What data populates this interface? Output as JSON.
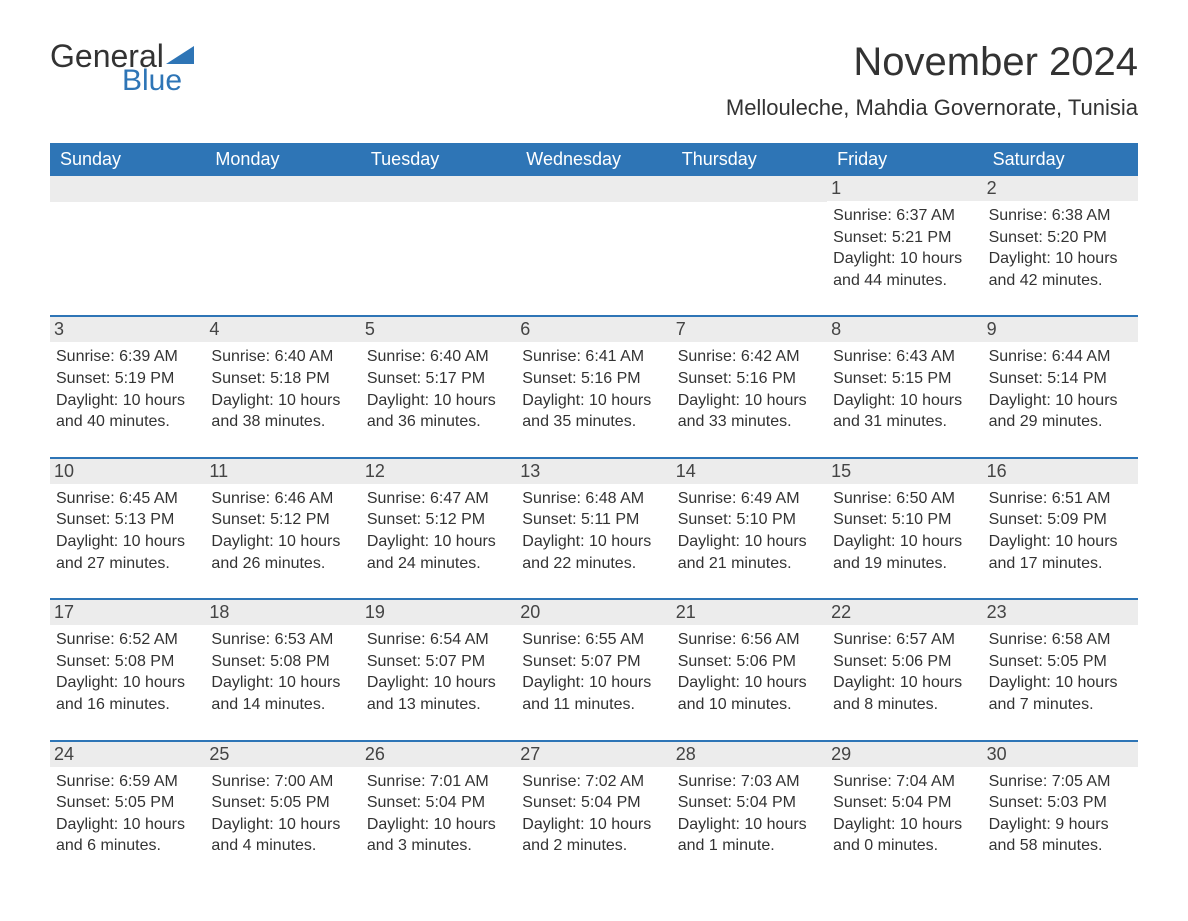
{
  "logo": {
    "general": "General",
    "blue": "Blue"
  },
  "title": "November 2024",
  "location": "Mellouleche, Mahdia Governorate, Tunisia",
  "colors": {
    "header_bg": "#2e75b6",
    "header_text": "#ffffff",
    "daynum_bg": "#ececec",
    "border": "#2e75b6",
    "text": "#333333",
    "background": "#ffffff"
  },
  "weekdays": [
    "Sunday",
    "Monday",
    "Tuesday",
    "Wednesday",
    "Thursday",
    "Friday",
    "Saturday"
  ],
  "weeks": [
    [
      null,
      null,
      null,
      null,
      null,
      {
        "n": "1",
        "sunrise": "Sunrise: 6:37 AM",
        "sunset": "Sunset: 5:21 PM",
        "daylight": "Daylight: 10 hours and 44 minutes."
      },
      {
        "n": "2",
        "sunrise": "Sunrise: 6:38 AM",
        "sunset": "Sunset: 5:20 PM",
        "daylight": "Daylight: 10 hours and 42 minutes."
      }
    ],
    [
      {
        "n": "3",
        "sunrise": "Sunrise: 6:39 AM",
        "sunset": "Sunset: 5:19 PM",
        "daylight": "Daylight: 10 hours and 40 minutes."
      },
      {
        "n": "4",
        "sunrise": "Sunrise: 6:40 AM",
        "sunset": "Sunset: 5:18 PM",
        "daylight": "Daylight: 10 hours and 38 minutes."
      },
      {
        "n": "5",
        "sunrise": "Sunrise: 6:40 AM",
        "sunset": "Sunset: 5:17 PM",
        "daylight": "Daylight: 10 hours and 36 minutes."
      },
      {
        "n": "6",
        "sunrise": "Sunrise: 6:41 AM",
        "sunset": "Sunset: 5:16 PM",
        "daylight": "Daylight: 10 hours and 35 minutes."
      },
      {
        "n": "7",
        "sunrise": "Sunrise: 6:42 AM",
        "sunset": "Sunset: 5:16 PM",
        "daylight": "Daylight: 10 hours and 33 minutes."
      },
      {
        "n": "8",
        "sunrise": "Sunrise: 6:43 AM",
        "sunset": "Sunset: 5:15 PM",
        "daylight": "Daylight: 10 hours and 31 minutes."
      },
      {
        "n": "9",
        "sunrise": "Sunrise: 6:44 AM",
        "sunset": "Sunset: 5:14 PM",
        "daylight": "Daylight: 10 hours and 29 minutes."
      }
    ],
    [
      {
        "n": "10",
        "sunrise": "Sunrise: 6:45 AM",
        "sunset": "Sunset: 5:13 PM",
        "daylight": "Daylight: 10 hours and 27 minutes."
      },
      {
        "n": "11",
        "sunrise": "Sunrise: 6:46 AM",
        "sunset": "Sunset: 5:12 PM",
        "daylight": "Daylight: 10 hours and 26 minutes."
      },
      {
        "n": "12",
        "sunrise": "Sunrise: 6:47 AM",
        "sunset": "Sunset: 5:12 PM",
        "daylight": "Daylight: 10 hours and 24 minutes."
      },
      {
        "n": "13",
        "sunrise": "Sunrise: 6:48 AM",
        "sunset": "Sunset: 5:11 PM",
        "daylight": "Daylight: 10 hours and 22 minutes."
      },
      {
        "n": "14",
        "sunrise": "Sunrise: 6:49 AM",
        "sunset": "Sunset: 5:10 PM",
        "daylight": "Daylight: 10 hours and 21 minutes."
      },
      {
        "n": "15",
        "sunrise": "Sunrise: 6:50 AM",
        "sunset": "Sunset: 5:10 PM",
        "daylight": "Daylight: 10 hours and 19 minutes."
      },
      {
        "n": "16",
        "sunrise": "Sunrise: 6:51 AM",
        "sunset": "Sunset: 5:09 PM",
        "daylight": "Daylight: 10 hours and 17 minutes."
      }
    ],
    [
      {
        "n": "17",
        "sunrise": "Sunrise: 6:52 AM",
        "sunset": "Sunset: 5:08 PM",
        "daylight": "Daylight: 10 hours and 16 minutes."
      },
      {
        "n": "18",
        "sunrise": "Sunrise: 6:53 AM",
        "sunset": "Sunset: 5:08 PM",
        "daylight": "Daylight: 10 hours and 14 minutes."
      },
      {
        "n": "19",
        "sunrise": "Sunrise: 6:54 AM",
        "sunset": "Sunset: 5:07 PM",
        "daylight": "Daylight: 10 hours and 13 minutes."
      },
      {
        "n": "20",
        "sunrise": "Sunrise: 6:55 AM",
        "sunset": "Sunset: 5:07 PM",
        "daylight": "Daylight: 10 hours and 11 minutes."
      },
      {
        "n": "21",
        "sunrise": "Sunrise: 6:56 AM",
        "sunset": "Sunset: 5:06 PM",
        "daylight": "Daylight: 10 hours and 10 minutes."
      },
      {
        "n": "22",
        "sunrise": "Sunrise: 6:57 AM",
        "sunset": "Sunset: 5:06 PM",
        "daylight": "Daylight: 10 hours and 8 minutes."
      },
      {
        "n": "23",
        "sunrise": "Sunrise: 6:58 AM",
        "sunset": "Sunset: 5:05 PM",
        "daylight": "Daylight: 10 hours and 7 minutes."
      }
    ],
    [
      {
        "n": "24",
        "sunrise": "Sunrise: 6:59 AM",
        "sunset": "Sunset: 5:05 PM",
        "daylight": "Daylight: 10 hours and 6 minutes."
      },
      {
        "n": "25",
        "sunrise": "Sunrise: 7:00 AM",
        "sunset": "Sunset: 5:05 PM",
        "daylight": "Daylight: 10 hours and 4 minutes."
      },
      {
        "n": "26",
        "sunrise": "Sunrise: 7:01 AM",
        "sunset": "Sunset: 5:04 PM",
        "daylight": "Daylight: 10 hours and 3 minutes."
      },
      {
        "n": "27",
        "sunrise": "Sunrise: 7:02 AM",
        "sunset": "Sunset: 5:04 PM",
        "daylight": "Daylight: 10 hours and 2 minutes."
      },
      {
        "n": "28",
        "sunrise": "Sunrise: 7:03 AM",
        "sunset": "Sunset: 5:04 PM",
        "daylight": "Daylight: 10 hours and 1 minute."
      },
      {
        "n": "29",
        "sunrise": "Sunrise: 7:04 AM",
        "sunset": "Sunset: 5:04 PM",
        "daylight": "Daylight: 10 hours and 0 minutes."
      },
      {
        "n": "30",
        "sunrise": "Sunrise: 7:05 AM",
        "sunset": "Sunset: 5:03 PM",
        "daylight": "Daylight: 9 hours and 58 minutes."
      }
    ]
  ]
}
